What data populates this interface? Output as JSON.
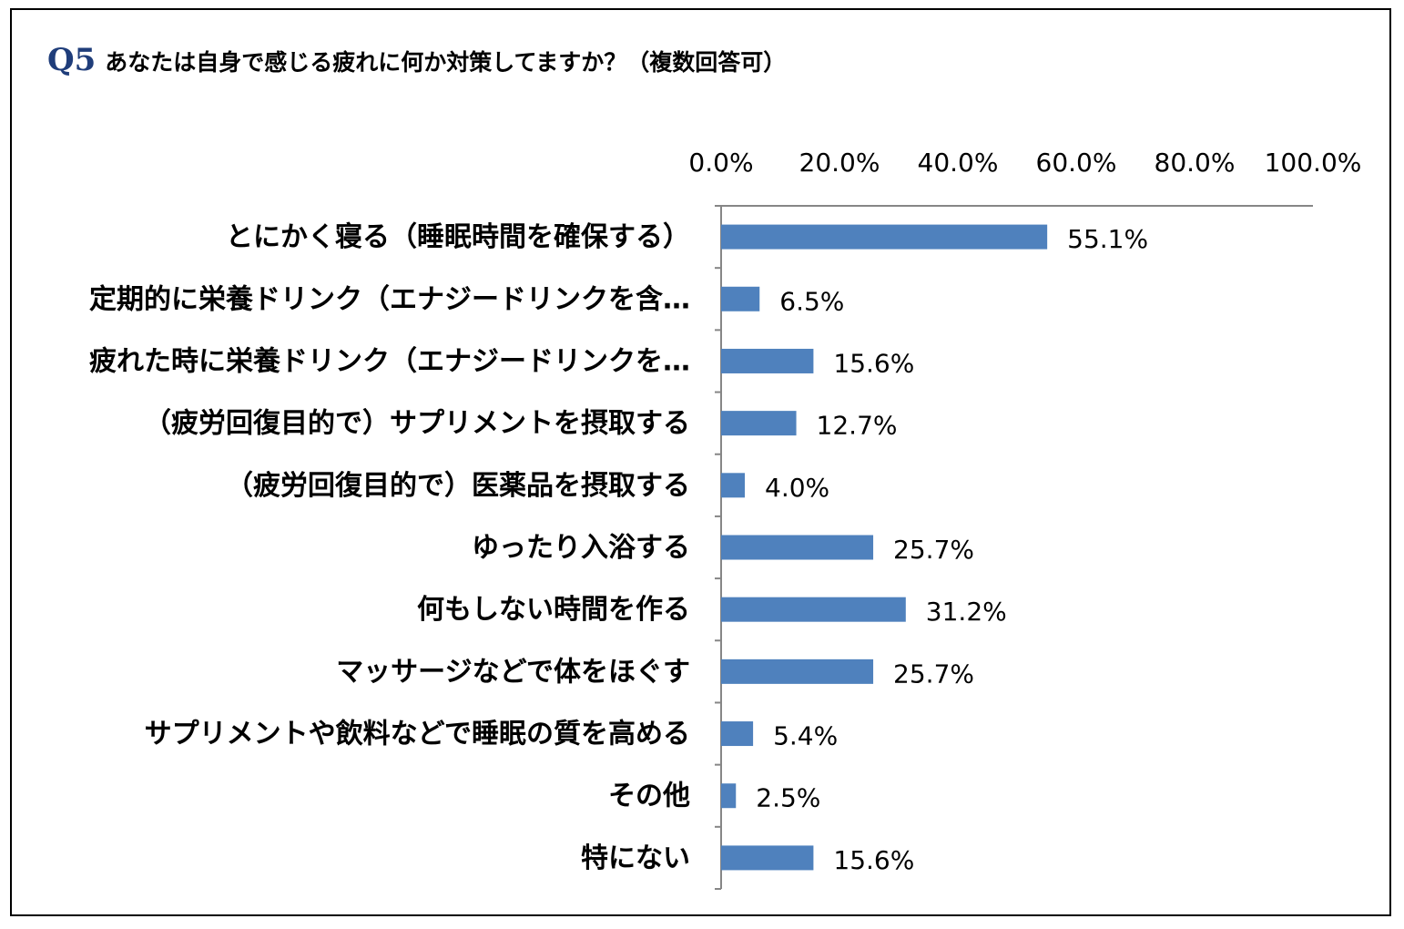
{
  "header": {
    "q_label": "Q5",
    "title": "あなたは自身で感じる疲れに何か対策してますか？（複数回答可）"
  },
  "colors": {
    "bar": "#4f81bd",
    "axis": "#868686",
    "title_accent": "#1f3d7a"
  },
  "chart_data": {
    "type": "bar",
    "orientation": "horizontal",
    "title": "あなたは自身で感じる疲れに何か対策してますか？（複数回答可）",
    "xlim": [
      0,
      100
    ],
    "x_ticks": [
      "0.0%",
      "20.0%",
      "40.0%",
      "60.0%",
      "80.0%",
      "100.0%"
    ],
    "x_axis_position": "top",
    "grid": false,
    "legend": "none",
    "categories": [
      "とにかく寝る（睡眠時間を確保する）",
      "定期的に栄養ドリンク（エナジードリンクを含…",
      "疲れた時に栄養ドリンク（エナジードリンクを…",
      "（疲労回復目的で）サプリメントを摂取する",
      "（疲労回復目的で）医薬品を摂取する",
      "ゆったり入浴する",
      "何もしない時間を作る",
      "マッサージなどで体をほぐす",
      "サプリメントや飲料などで睡眠の質を高める",
      "その他",
      "特にない"
    ],
    "values": [
      55.1,
      6.5,
      15.6,
      12.7,
      4.0,
      25.7,
      31.2,
      25.7,
      5.4,
      2.5,
      15.6
    ],
    "value_labels": [
      "55.1%",
      "6.5%",
      "15.6%",
      "12.7%",
      "4.0%",
      "25.7%",
      "31.2%",
      "25.7%",
      "5.4%",
      "2.5%",
      "15.6%"
    ]
  }
}
